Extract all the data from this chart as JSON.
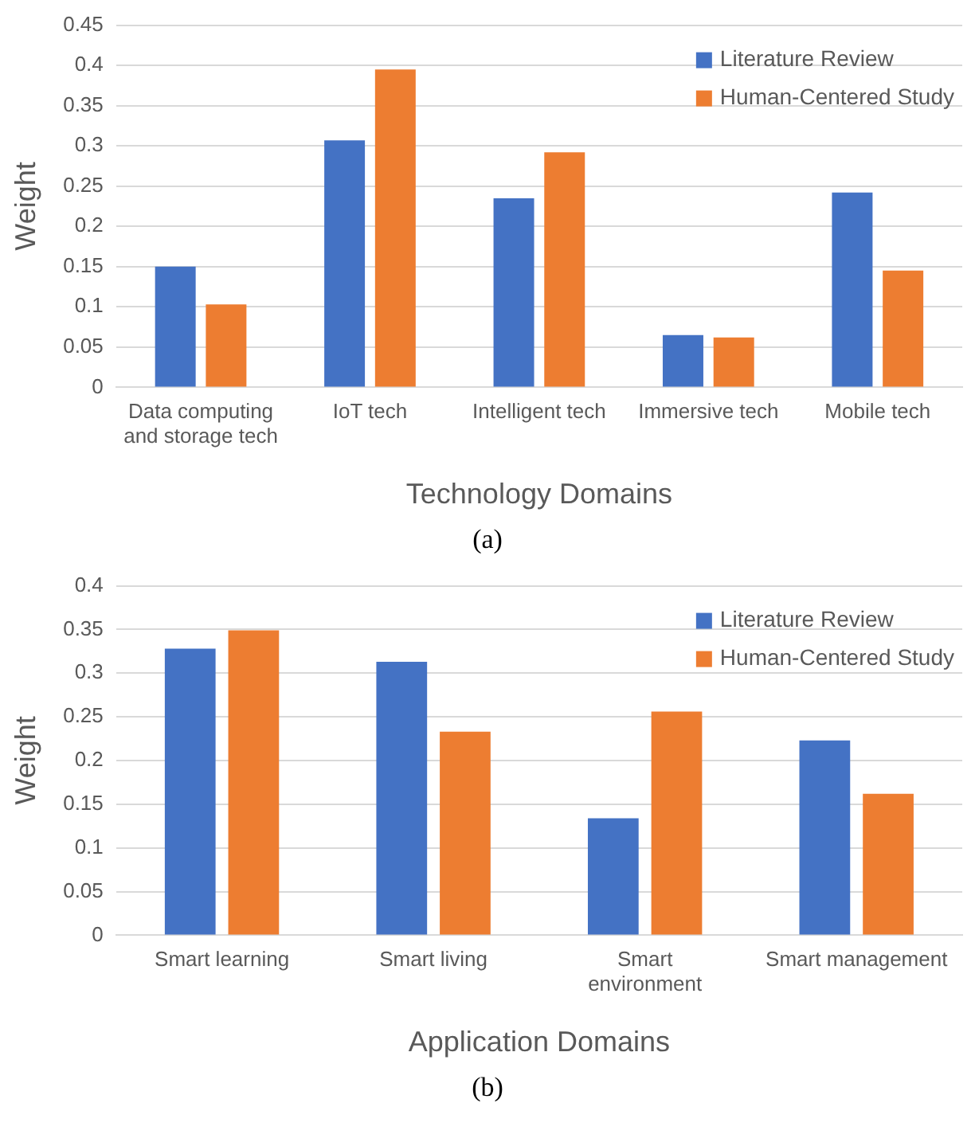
{
  "chart_data": [
    {
      "type": "bar",
      "categories": [
        "Data computing and storage tech",
        "IoT tech",
        "Intelligent tech",
        "Immersive tech",
        "Mobile tech"
      ],
      "series": [
        {
          "name": "Literature Review",
          "color": "#4472c4",
          "values": [
            0.15,
            0.307,
            0.235,
            0.065,
            0.242
          ]
        },
        {
          "name": "Human-Centered Study",
          "color": "#ed7d31",
          "values": [
            0.103,
            0.395,
            0.292,
            0.062,
            0.145
          ]
        }
      ],
      "xlabel": "Technology Domains",
      "ylabel": "Weight",
      "ylim": [
        0,
        0.45
      ],
      "yticks": [
        0,
        0.05,
        0.1,
        0.15,
        0.2,
        0.25,
        0.3,
        0.35,
        0.4,
        0.45
      ],
      "grid": "y",
      "legend": "top right",
      "annotations": [
        "(a)"
      ]
    },
    {
      "type": "bar",
      "categories": [
        "Smart learning",
        "Smart living",
        "Smart environment",
        "Smart management"
      ],
      "series": [
        {
          "name": "Literature Review",
          "color": "#4472c4",
          "values": [
            0.328,
            0.313,
            0.134,
            0.223
          ]
        },
        {
          "name": "Human-Centered Study",
          "color": "#ed7d31",
          "values": [
            0.349,
            0.233,
            0.256,
            0.162
          ]
        }
      ],
      "xlabel": "Application Domains",
      "ylabel": "Weight",
      "ylim": [
        0,
        0.4
      ],
      "yticks": [
        0,
        0.05,
        0.1,
        0.15,
        0.2,
        0.25,
        0.3,
        0.35,
        0.4
      ],
      "grid": "y",
      "legend": "top right",
      "annotations": [
        "(b)"
      ]
    }
  ]
}
